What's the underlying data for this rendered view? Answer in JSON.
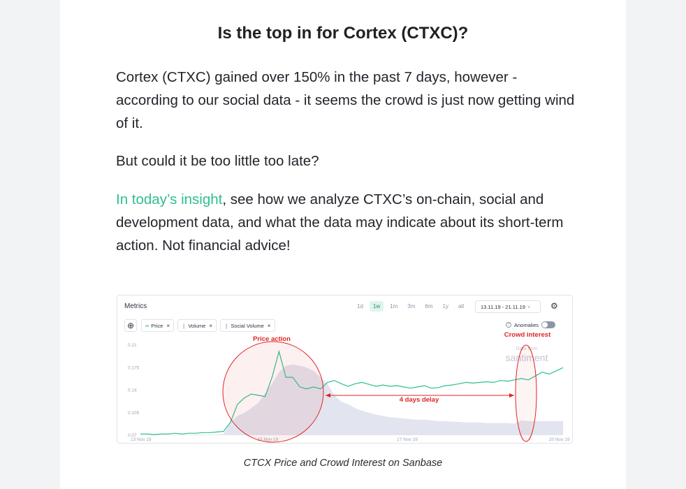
{
  "article": {
    "headline": "Is the top in for Cortex (CTXC)?",
    "paragraph1": "Cortex (CTXC) gained over 150% in the past 7 days, however - according to our social data - it seems the crowd is just now getting wind of it.",
    "paragraph2": "But could it be too little too late?",
    "paragraph3_link": "In today’s insight",
    "paragraph3_rest": ", see how we analyze CTXC’s on-chain, social and development data, and what the data may indicate about its short-term action. Not financial advice!",
    "caption": "CTCX Price and Crowd Interest on Sanbase",
    "link_color": "#2ebf8e"
  },
  "chart_widget": {
    "title": "Metrics",
    "ranges": [
      "1d",
      "1w",
      "1m",
      "3m",
      "6m",
      "1y",
      "all"
    ],
    "active_range": "1w",
    "date_range": "13.11.19 - 21.11.19",
    "date_chevron": "˅",
    "settings_icon": "gear-icon",
    "add_icon": "plus-icon",
    "add_glyph": "⊕",
    "gear_glyph": "⚙",
    "tag_close": "×",
    "metrics": [
      {
        "label": "Price",
        "icon": "••",
        "color": "#2ebf8e"
      },
      {
        "label": "Volume",
        "icon": "❙",
        "color": "#b0b8c6"
      },
      {
        "label": "Social Volume",
        "icon": "❙",
        "color": "#b0b8c6"
      }
    ],
    "anomalies_label": "Anomalies",
    "anomalies_on": false,
    "watermark": "Data from santiment"
  },
  "chart_data": {
    "type": "line",
    "x_ticks": [
      "13 Nov 19",
      "15 Nov 19",
      "17 Nov 19",
      "20 Nov 19"
    ],
    "y_ticks": [
      "0.21",
      "0.175",
      "0.14",
      "0.105",
      "0.07"
    ],
    "ylim": [
      0.07,
      0.21
    ],
    "series": [
      {
        "name": "Price",
        "color": "#2ebf8e",
        "values": [
          0.072,
          0.072,
          0.071,
          0.072,
          0.072,
          0.073,
          0.072,
          0.073,
          0.073,
          0.074,
          0.074,
          0.075,
          0.076,
          0.09,
          0.118,
          0.128,
          0.134,
          0.132,
          0.13,
          0.16,
          0.2,
          0.16,
          0.16,
          0.145,
          0.142,
          0.145,
          0.142,
          0.152,
          0.155,
          0.15,
          0.146,
          0.15,
          0.152,
          0.149,
          0.146,
          0.148,
          0.146,
          0.147,
          0.145,
          0.143,
          0.145,
          0.147,
          0.143,
          0.144,
          0.147,
          0.148,
          0.15,
          0.152,
          0.151,
          0.152,
          0.153,
          0.152,
          0.155,
          0.154,
          0.156,
          0.158,
          0.156,
          0.162,
          0.168,
          0.165,
          0.17,
          0.175
        ]
      },
      {
        "name": "Volume",
        "color": "#dde1ec",
        "values": [
          0.071,
          0.071,
          0.071,
          0.071,
          0.071,
          0.071,
          0.071,
          0.071,
          0.071,
          0.071,
          0.071,
          0.071,
          0.072,
          0.09,
          0.1,
          0.105,
          0.112,
          0.12,
          0.135,
          0.15,
          0.168,
          0.178,
          0.18,
          0.178,
          0.175,
          0.17,
          0.16,
          0.15,
          0.132,
          0.122,
          0.118,
          0.112,
          0.108,
          0.105,
          0.102,
          0.1,
          0.098,
          0.097,
          0.096,
          0.095,
          0.094,
          0.094,
          0.093,
          0.092,
          0.092,
          0.091,
          0.091,
          0.09,
          0.09,
          0.09,
          0.089,
          0.089,
          0.089,
          0.089,
          0.088,
          0.093,
          0.092,
          0.092,
          0.092,
          0.092,
          0.092,
          0.092
        ]
      }
    ],
    "annotations": [
      {
        "label": "Price action",
        "color": "#e02424"
      },
      {
        "label": "Crowd interest",
        "color": "#e02424"
      },
      {
        "label": "4 days delay",
        "color": "#e02424"
      }
    ]
  }
}
